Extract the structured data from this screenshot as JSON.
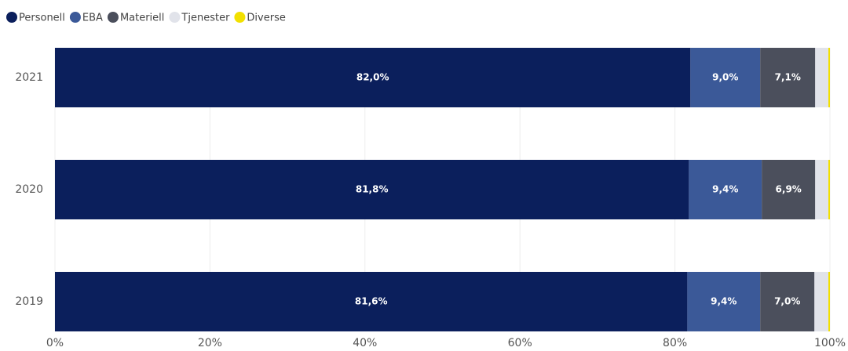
{
  "chart_data": {
    "type": "stacked_bar_horizontal",
    "categories": [
      "2021",
      "2020",
      "2019"
    ],
    "series": [
      {
        "name": "Personell",
        "color": "#0b1f5c",
        "values": [
          82.0,
          81.8,
          81.6
        ],
        "value_labels": [
          "82,0%",
          "81,8%",
          "81,6%"
        ]
      },
      {
        "name": "EBA",
        "color": "#3b5998",
        "values": [
          9.0,
          9.4,
          9.4
        ],
        "value_labels": [
          "9,0%",
          "9,4%",
          "9,4%"
        ]
      },
      {
        "name": "Materiell",
        "color": "#4b4f5c",
        "values": [
          7.1,
          6.9,
          7.0
        ],
        "value_labels": [
          "7,1%",
          "6,9%",
          "7,0%"
        ]
      },
      {
        "name": "Tjenester",
        "color": "#e1e3ea",
        "values": [
          1.7,
          1.7,
          1.8
        ]
      },
      {
        "name": "Diverse",
        "color": "#f2e000",
        "values": [
          0.2,
          0.2,
          0.2
        ]
      }
    ],
    "xlim": [
      0,
      100
    ],
    "xticks": [
      {
        "value": 0,
        "label": "0%"
      },
      {
        "value": 20,
        "label": "20%"
      },
      {
        "value": 40,
        "label": "40%"
      },
      {
        "value": 60,
        "label": "60%"
      },
      {
        "value": 80,
        "label": "80%"
      },
      {
        "value": 100,
        "label": "100%"
      }
    ],
    "grid": true,
    "legend": "top-left"
  }
}
